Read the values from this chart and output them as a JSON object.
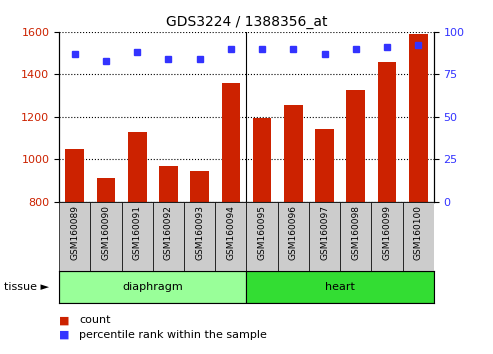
{
  "title": "GDS3224 / 1388356_at",
  "samples": [
    "GSM160089",
    "GSM160090",
    "GSM160091",
    "GSM160092",
    "GSM160093",
    "GSM160094",
    "GSM160095",
    "GSM160096",
    "GSM160097",
    "GSM160098",
    "GSM160099",
    "GSM160100"
  ],
  "counts": [
    1050,
    910,
    1130,
    970,
    945,
    1360,
    1195,
    1255,
    1145,
    1325,
    1460,
    1590
  ],
  "percentiles": [
    87,
    83,
    88,
    84,
    84,
    90,
    90,
    90,
    87,
    90,
    91,
    92
  ],
  "ylim_left": [
    800,
    1600
  ],
  "ylim_right": [
    0,
    100
  ],
  "yticks_left": [
    800,
    1000,
    1200,
    1400,
    1600
  ],
  "yticks_right": [
    0,
    25,
    50,
    75,
    100
  ],
  "bar_color": "#cc2200",
  "dot_color": "#3333ff",
  "bg_color": "#ffffff",
  "grid_color": "#000000",
  "tissue_groups": [
    {
      "label": "diaphragm",
      "start": 0,
      "end": 6,
      "color": "#99ff99"
    },
    {
      "label": "heart",
      "start": 6,
      "end": 12,
      "color": "#33dd33"
    }
  ],
  "left_axis_color": "#cc2200",
  "right_axis_color": "#3333ff",
  "tick_label_bg": "#cccccc",
  "legend_count_color": "#cc2200",
  "legend_pct_color": "#3333ff"
}
